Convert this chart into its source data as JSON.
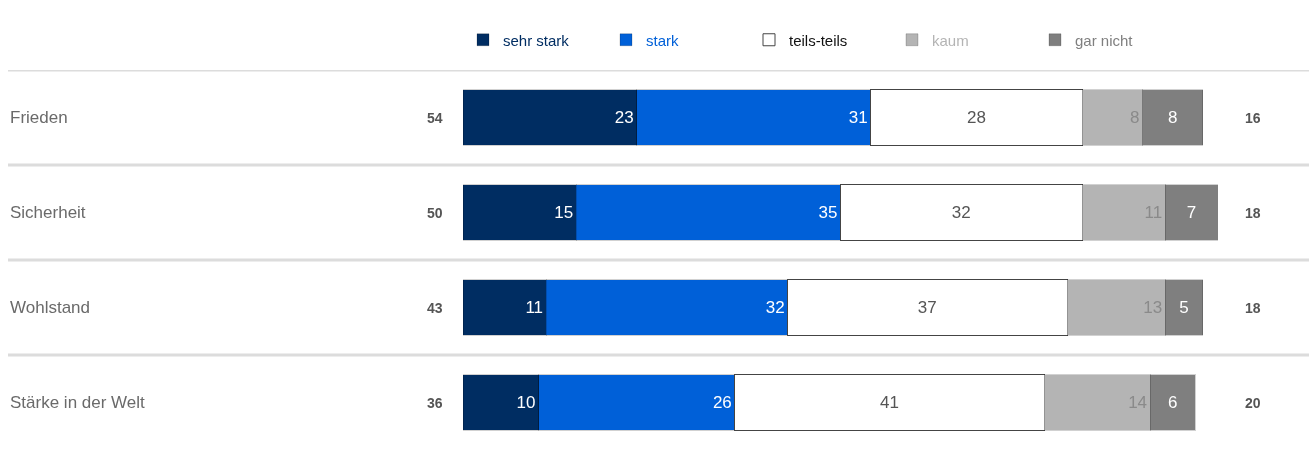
{
  "chart_data": {
    "type": "bar",
    "orientation": "horizontal",
    "stacked": true,
    "categories": [
      "Frieden",
      "Sicherheit",
      "Wohlstand",
      "Stärke in der Welt"
    ],
    "series": [
      {
        "name": "sehr stark",
        "color": "#002d62",
        "values": [
          23,
          15,
          11,
          10
        ]
      },
      {
        "name": "stark",
        "color": "#0060d8",
        "values": [
          31,
          35,
          32,
          26
        ]
      },
      {
        "name": "teils-teils",
        "color": "#ffffff",
        "values": [
          28,
          32,
          37,
          41
        ]
      },
      {
        "name": "kaum",
        "color": "#b4b4b4",
        "values": [
          8,
          11,
          13,
          14
        ]
      },
      {
        "name": "gar nicht",
        "color": "#7f7f7f",
        "values": [
          8,
          7,
          5,
          6
        ]
      }
    ],
    "tick_labels": "y",
    "data_labels": true,
    "legend": "top",
    "annotations": [
      "54",
      "50",
      "43",
      "36",
      "16",
      "18",
      "18",
      "20"
    ]
  }
}
